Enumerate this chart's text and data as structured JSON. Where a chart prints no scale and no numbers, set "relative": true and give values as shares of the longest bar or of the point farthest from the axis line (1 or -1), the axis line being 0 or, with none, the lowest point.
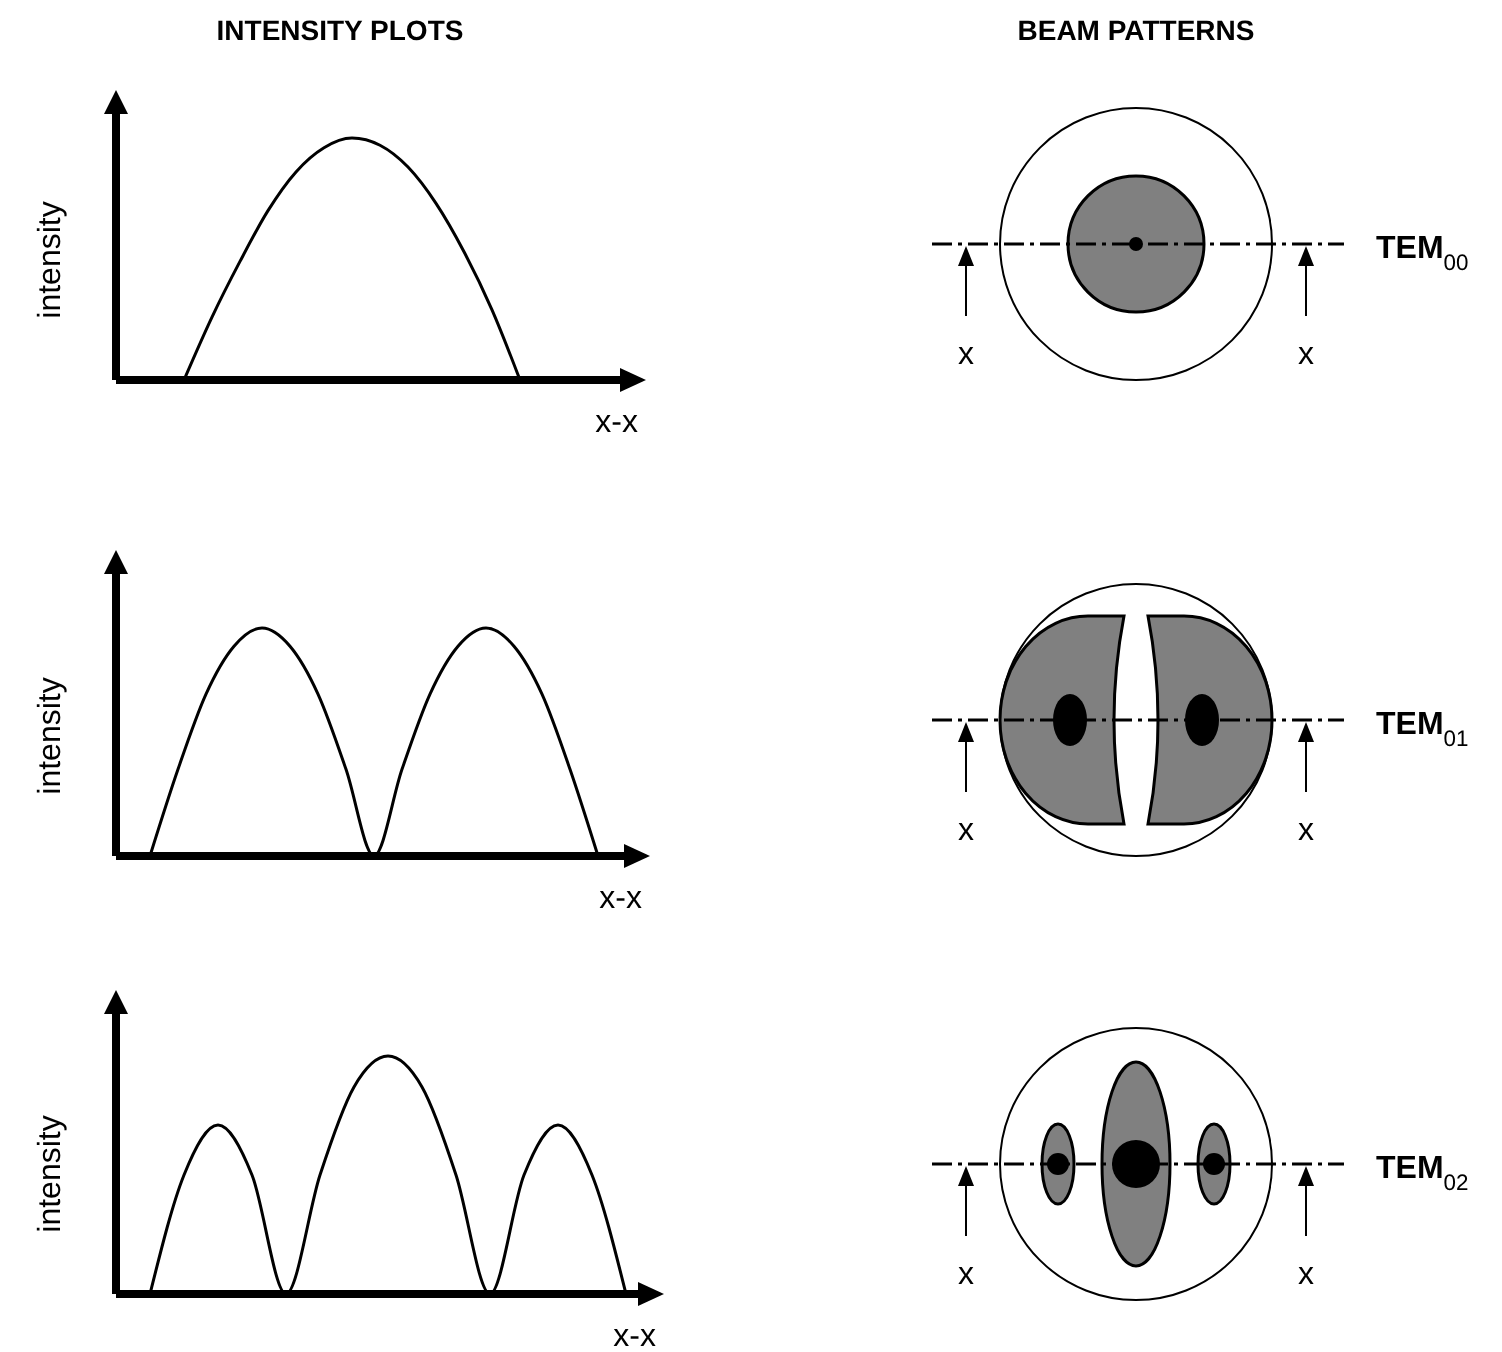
{
  "chart_data": [
    {
      "type": "line",
      "title": "INTENSITY PLOTS",
      "relative": true,
      "xlabel": "x-x",
      "ylabel": "intensity",
      "categories": [
        null,
        null,
        null,
        null,
        null,
        null,
        null,
        null,
        null,
        null,
        null,
        null,
        null,
        null,
        null,
        null,
        null
      ],
      "series": [
        {
          "color": "#000000",
          "values": [
            null,
            null,
            0,
            0.26,
            0.49,
            0.7,
            0.86,
            0.96,
            1,
            0.97,
            0.88,
            0.73,
            0.53,
            0.29,
            0,
            null,
            null
          ]
        }
      ],
      "annotations": [
        "BEAM PATTERNS",
        "TEM$_{00}$",
        "x",
        "x"
      ],
      "marker": "none"
    },
    {
      "type": "line",
      "relative": true,
      "xlabel": "x-x",
      "ylabel": "intensity",
      "categories": [
        null,
        null,
        null,
        null,
        null,
        null,
        null,
        null,
        null,
        null,
        null,
        null,
        null,
        null,
        null,
        null,
        null
      ],
      "series": [
        {
          "color": "#000000",
          "values": [
            0,
            0.38,
            0.71,
            0.92,
            1,
            0.92,
            0.71,
            0.38,
            0,
            0.38,
            0.71,
            0.92,
            1,
            0.92,
            0.71,
            0.38,
            0
          ]
        }
      ],
      "annotations": [
        "TEM$_{01}$",
        "x",
        "x"
      ],
      "marker": "none"
    },
    {
      "type": "line",
      "relative": true,
      "xlabel": "x-x",
      "ylabel": "intensity",
      "categories": [
        null,
        null,
        null,
        null,
        null,
        null,
        null,
        null,
        null,
        null,
        null,
        null,
        null,
        null,
        null
      ],
      "series": [
        {
          "color": "#000000",
          "values": [
            0,
            0.5,
            0.71,
            0.5,
            0,
            0.5,
            0.87,
            1,
            0.87,
            0.5,
            0,
            0.5,
            0.71,
            0.5,
            0
          ]
        }
      ],
      "annotations": [
        "TEM$_{02}$",
        "x",
        "x"
      ],
      "marker": "none"
    }
  ]
}
